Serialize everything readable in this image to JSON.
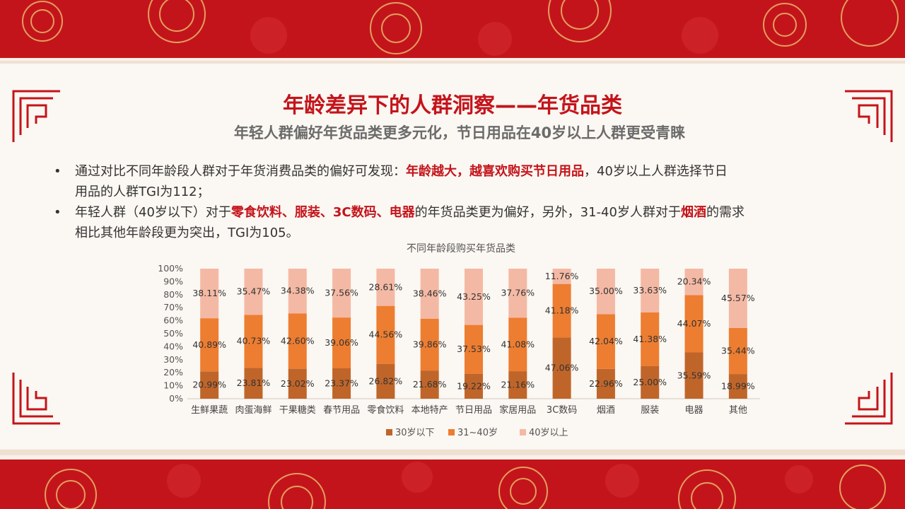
{
  "header": {
    "title": "年龄差异下的人群洞察——年货品类",
    "subtitle": "年轻人群偏好年货品类更多元化，节日用品在40岁以上人群更受青睐"
  },
  "bullets": [
    {
      "dot": "•",
      "line1_a": "通过对比不同年龄段人群对于年货消费品类的偏好可发现：",
      "line1_hl": "年龄越大，越喜欢购买节日用品",
      "line1_b": "，40岁以上人群选择节日",
      "line2": "用品的人群TGI为112；"
    },
    {
      "dot": "•",
      "a": "年轻人群（40岁以下）对于",
      "hl1": "零食饮料、服装、3C数码、电器",
      "b": "的年货品类更为偏好，另外，31-40岁人群对于",
      "hl2": "烟酒",
      "c": "的需求",
      "line2": "相比其他年龄段更为突出，TGI为105。"
    }
  ],
  "colors": {
    "red": "#c4141b",
    "s1": "#c0652a",
    "s2": "#ed7d31",
    "s3": "#f4b9a4"
  },
  "chart_data": {
    "type": "bar",
    "stacked": true,
    "percent": true,
    "title": "不同年龄段购买年货品类",
    "categories": [
      "生鲜果蔬",
      "肉蛋海鲜",
      "干果糖类",
      "春节用品",
      "零食饮料",
      "本地特产",
      "节日用品",
      "家居用品",
      "3C数码",
      "烟酒",
      "服装",
      "电器",
      "其他"
    ],
    "series": [
      {
        "name": "30岁以下",
        "color": "#c0652a",
        "values": [
          20.99,
          23.81,
          23.02,
          23.37,
          26.82,
          21.68,
          19.22,
          21.16,
          47.06,
          22.96,
          25.0,
          35.59,
          18.99
        ]
      },
      {
        "name": "31~40岁",
        "color": "#ed7d31",
        "values": [
          40.89,
          40.73,
          42.6,
          39.06,
          44.56,
          39.86,
          37.53,
          41.08,
          41.18,
          42.04,
          41.38,
          44.07,
          35.44
        ]
      },
      {
        "name": "40岁以上",
        "color": "#f4b9a4",
        "values": [
          38.11,
          35.47,
          34.38,
          37.56,
          28.61,
          38.46,
          43.25,
          37.76,
          11.76,
          35.0,
          33.63,
          20.34,
          45.57
        ]
      }
    ],
    "yticks": [
      "0%",
      "10%",
      "20%",
      "30%",
      "40%",
      "50%",
      "60%",
      "70%",
      "80%",
      "90%",
      "100%"
    ],
    "ylim": [
      0,
      100
    ],
    "legend": "bottom"
  }
}
